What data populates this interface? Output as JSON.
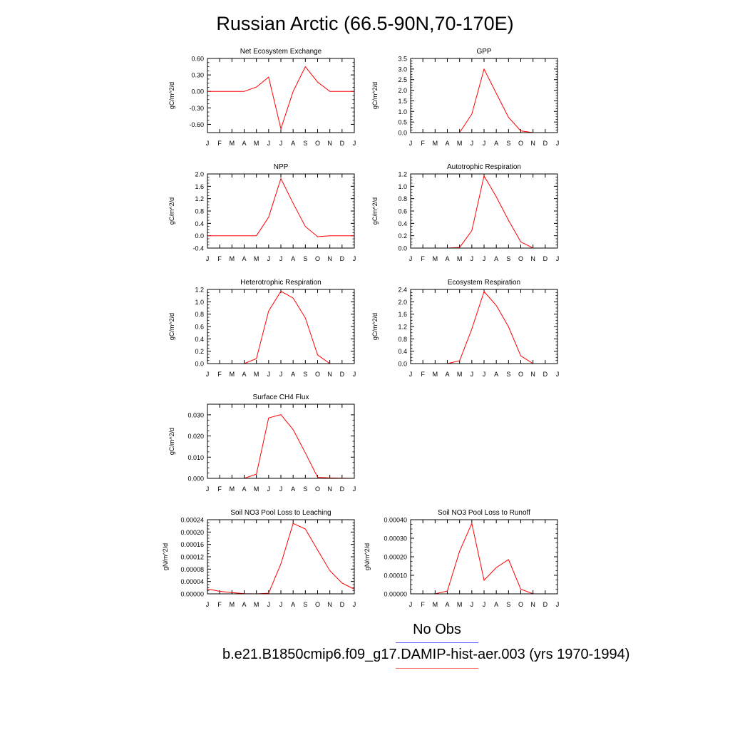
{
  "title": "Russian Arctic (66.5-90N,70-170E)",
  "legend": {
    "obs_label": "No Obs",
    "model_label": "b.e21.B1850cmip6.f09_g17.DAMIP-hist-aer.003 (yrs 1970-1994)",
    "obs_color": "#6666ff",
    "model_color": "#ff6666"
  },
  "chart_data": [
    {
      "type": "line",
      "title": "Net Ecosystem Exchange",
      "ylabel": "gC/m^2/d",
      "xlabel": "",
      "categories": [
        "J",
        "F",
        "M",
        "A",
        "M",
        "J",
        "J",
        "A",
        "S",
        "O",
        "N",
        "D",
        "J"
      ],
      "ylim": [
        -0.75,
        0.6
      ],
      "yticks": [
        0.6,
        0.3,
        0.0,
        -0.3,
        -0.6
      ],
      "ytick_labels": [
        "0.60",
        "0.30",
        "0.00",
        "-0.30",
        "-0.60"
      ],
      "series": [
        {
          "color": "#ff0000",
          "values": [
            0.0,
            0.0,
            0.0,
            0.0,
            0.08,
            0.26,
            -0.68,
            0.0,
            0.45,
            0.17,
            0.0,
            0.0,
            0.0
          ]
        }
      ]
    },
    {
      "type": "line",
      "title": "GPP",
      "ylabel": "gC/m^2/d",
      "xlabel": "",
      "categories": [
        "J",
        "F",
        "M",
        "A",
        "M",
        "J",
        "J",
        "A",
        "S",
        "O",
        "N",
        "D",
        "J"
      ],
      "ylim": [
        0,
        3.5
      ],
      "yticks": [
        3.5,
        3.0,
        2.5,
        2.0,
        1.5,
        1.0,
        0.5,
        0.0
      ],
      "ytick_labels": [
        "3.5",
        "3.0",
        "2.5",
        "2.0",
        "1.5",
        "1.0",
        "0.5",
        "0.0"
      ],
      "series": [
        {
          "color": "#ff0000",
          "values": [
            0.0,
            0.0,
            0.0,
            0.0,
            0.0,
            0.87,
            3.0,
            1.85,
            0.72,
            0.08,
            0.0,
            0.0,
            0.0
          ]
        }
      ]
    },
    {
      "type": "line",
      "title": "NPP",
      "ylabel": "gC/m^2/d",
      "xlabel": "",
      "categories": [
        "J",
        "F",
        "M",
        "A",
        "M",
        "J",
        "J",
        "A",
        "S",
        "O",
        "N",
        "D",
        "J"
      ],
      "ylim": [
        -0.4,
        2.0
      ],
      "yticks": [
        2.0,
        1.6,
        1.2,
        0.8,
        0.4,
        0.0,
        -0.4
      ],
      "ytick_labels": [
        "2.0",
        "1.6",
        "1.2",
        "0.8",
        "0.4",
        "0.0",
        "-0.4"
      ],
      "series": [
        {
          "color": "#ff0000",
          "values": [
            0.0,
            0.0,
            0.0,
            0.0,
            0.0,
            0.6,
            1.85,
            1.05,
            0.3,
            -0.03,
            0.0,
            0.0,
            0.0
          ]
        }
      ]
    },
    {
      "type": "line",
      "title": "Autotrophic Respiration",
      "ylabel": "gC/m^2/d",
      "xlabel": "",
      "categories": [
        "J",
        "F",
        "M",
        "A",
        "M",
        "J",
        "J",
        "A",
        "S",
        "O",
        "N",
        "D",
        "J"
      ],
      "ylim": [
        0,
        1.2
      ],
      "yticks": [
        1.2,
        1.0,
        0.8,
        0.6,
        0.4,
        0.2,
        0.0
      ],
      "ytick_labels": [
        "1.2",
        "1.0",
        "0.8",
        "0.6",
        "0.4",
        "0.2",
        "0.0"
      ],
      "series": [
        {
          "color": "#ff0000",
          "values": [
            0.0,
            0.0,
            0.0,
            0.0,
            0.01,
            0.28,
            1.17,
            0.83,
            0.45,
            0.1,
            0.0,
            0.0,
            0.0
          ]
        }
      ]
    },
    {
      "type": "line",
      "title": "Heterotrophic Respiration",
      "ylabel": "gC/m^2/d",
      "xlabel": "",
      "categories": [
        "J",
        "F",
        "M",
        "A",
        "M",
        "J",
        "J",
        "A",
        "S",
        "O",
        "N",
        "D",
        "J"
      ],
      "ylim": [
        0,
        1.2
      ],
      "yticks": [
        1.2,
        1.0,
        0.8,
        0.6,
        0.4,
        0.2,
        0.0
      ],
      "ytick_labels": [
        "1.2",
        "1.0",
        "0.8",
        "0.6",
        "0.4",
        "0.2",
        "0.0"
      ],
      "series": [
        {
          "color": "#ff0000",
          "values": [
            0.0,
            0.0,
            0.0,
            0.0,
            0.08,
            0.85,
            1.17,
            1.06,
            0.74,
            0.14,
            0.0,
            0.0,
            0.0
          ]
        }
      ]
    },
    {
      "type": "line",
      "title": "Ecosystem Respiration",
      "ylabel": "gC/m^2/d",
      "xlabel": "",
      "categories": [
        "J",
        "F",
        "M",
        "A",
        "M",
        "J",
        "J",
        "A",
        "S",
        "O",
        "N",
        "D",
        "J"
      ],
      "ylim": [
        0,
        2.4
      ],
      "yticks": [
        2.4,
        2.0,
        1.6,
        1.2,
        0.8,
        0.4,
        0.0
      ],
      "ytick_labels": [
        "2.4",
        "2.0",
        "1.6",
        "1.2",
        "0.8",
        "0.4",
        "0.0"
      ],
      "series": [
        {
          "color": "#ff0000",
          "values": [
            0.0,
            0.0,
            0.0,
            0.0,
            0.09,
            1.12,
            2.33,
            1.88,
            1.19,
            0.25,
            0.0,
            0.0,
            0.0
          ]
        }
      ]
    },
    {
      "type": "line",
      "title": "Surface CH4 Flux",
      "ylabel": "gC/m^2/d",
      "xlabel": "",
      "categories": [
        "J",
        "F",
        "M",
        "A",
        "M",
        "J",
        "J",
        "A",
        "S",
        "O",
        "N",
        "D",
        "J"
      ],
      "ylim": [
        0,
        0.035
      ],
      "yticks": [
        0.03,
        0.02,
        0.01,
        0.0
      ],
      "ytick_labels": [
        "0.030",
        "0.020",
        "0.010",
        "0.000"
      ],
      "series": [
        {
          "color": "#ff0000",
          "values": [
            0.0,
            0.0,
            0.0,
            0.0,
            0.002,
            0.0285,
            0.0301,
            0.023,
            0.012,
            0.0005,
            0.0002,
            0.0001,
            0.0
          ]
        }
      ]
    },
    {
      "type": "line",
      "title": "Soil NO3 Pool Loss to Leaching",
      "ylabel": "gN/m^2/d",
      "xlabel": "",
      "categories": [
        "J",
        "F",
        "M",
        "A",
        "M",
        "J",
        "J",
        "A",
        "S",
        "O",
        "N",
        "D",
        "J"
      ],
      "ylim": [
        0,
        0.00024
      ],
      "yticks": [
        0.00024,
        0.0002,
        0.00016,
        0.00012,
        8e-05,
        4e-05,
        0.0
      ],
      "ytick_labels": [
        "0.00024",
        "0.00020",
        "0.00016",
        "0.00012",
        "0.00008",
        "0.00004",
        "0.00000"
      ],
      "series": [
        {
          "color": "#ff0000",
          "values": [
            1.6e-05,
            8e-06,
            4e-06,
            5e-07,
            0.0,
            2e-06,
            9.7e-05,
            0.000228,
            0.00021,
            0.000142,
            7.5e-05,
            3.5e-05,
            1.5e-05
          ]
        }
      ]
    },
    {
      "type": "line",
      "title": "Soil NO3 Pool Loss to Runoff",
      "ylabel": "gN/m^2/d",
      "xlabel": "",
      "categories": [
        "J",
        "F",
        "M",
        "A",
        "M",
        "J",
        "J",
        "A",
        "S",
        "O",
        "N",
        "D",
        "J"
      ],
      "ylim": [
        0,
        0.0004
      ],
      "yticks": [
        0.0004,
        0.0003,
        0.0002,
        0.0001,
        0.0
      ],
      "ytick_labels": [
        "0.00040",
        "0.00030",
        "0.00020",
        "0.00010",
        "0.00000"
      ],
      "series": [
        {
          "color": "#ff0000",
          "values": [
            0.0,
            0.0,
            0.0,
            1.5e-05,
            0.00023,
            0.00038,
            7.3e-05,
            0.000142,
            0.000185,
            2.5e-05,
            0.0,
            0.0,
            0.0
          ]
        }
      ]
    }
  ]
}
